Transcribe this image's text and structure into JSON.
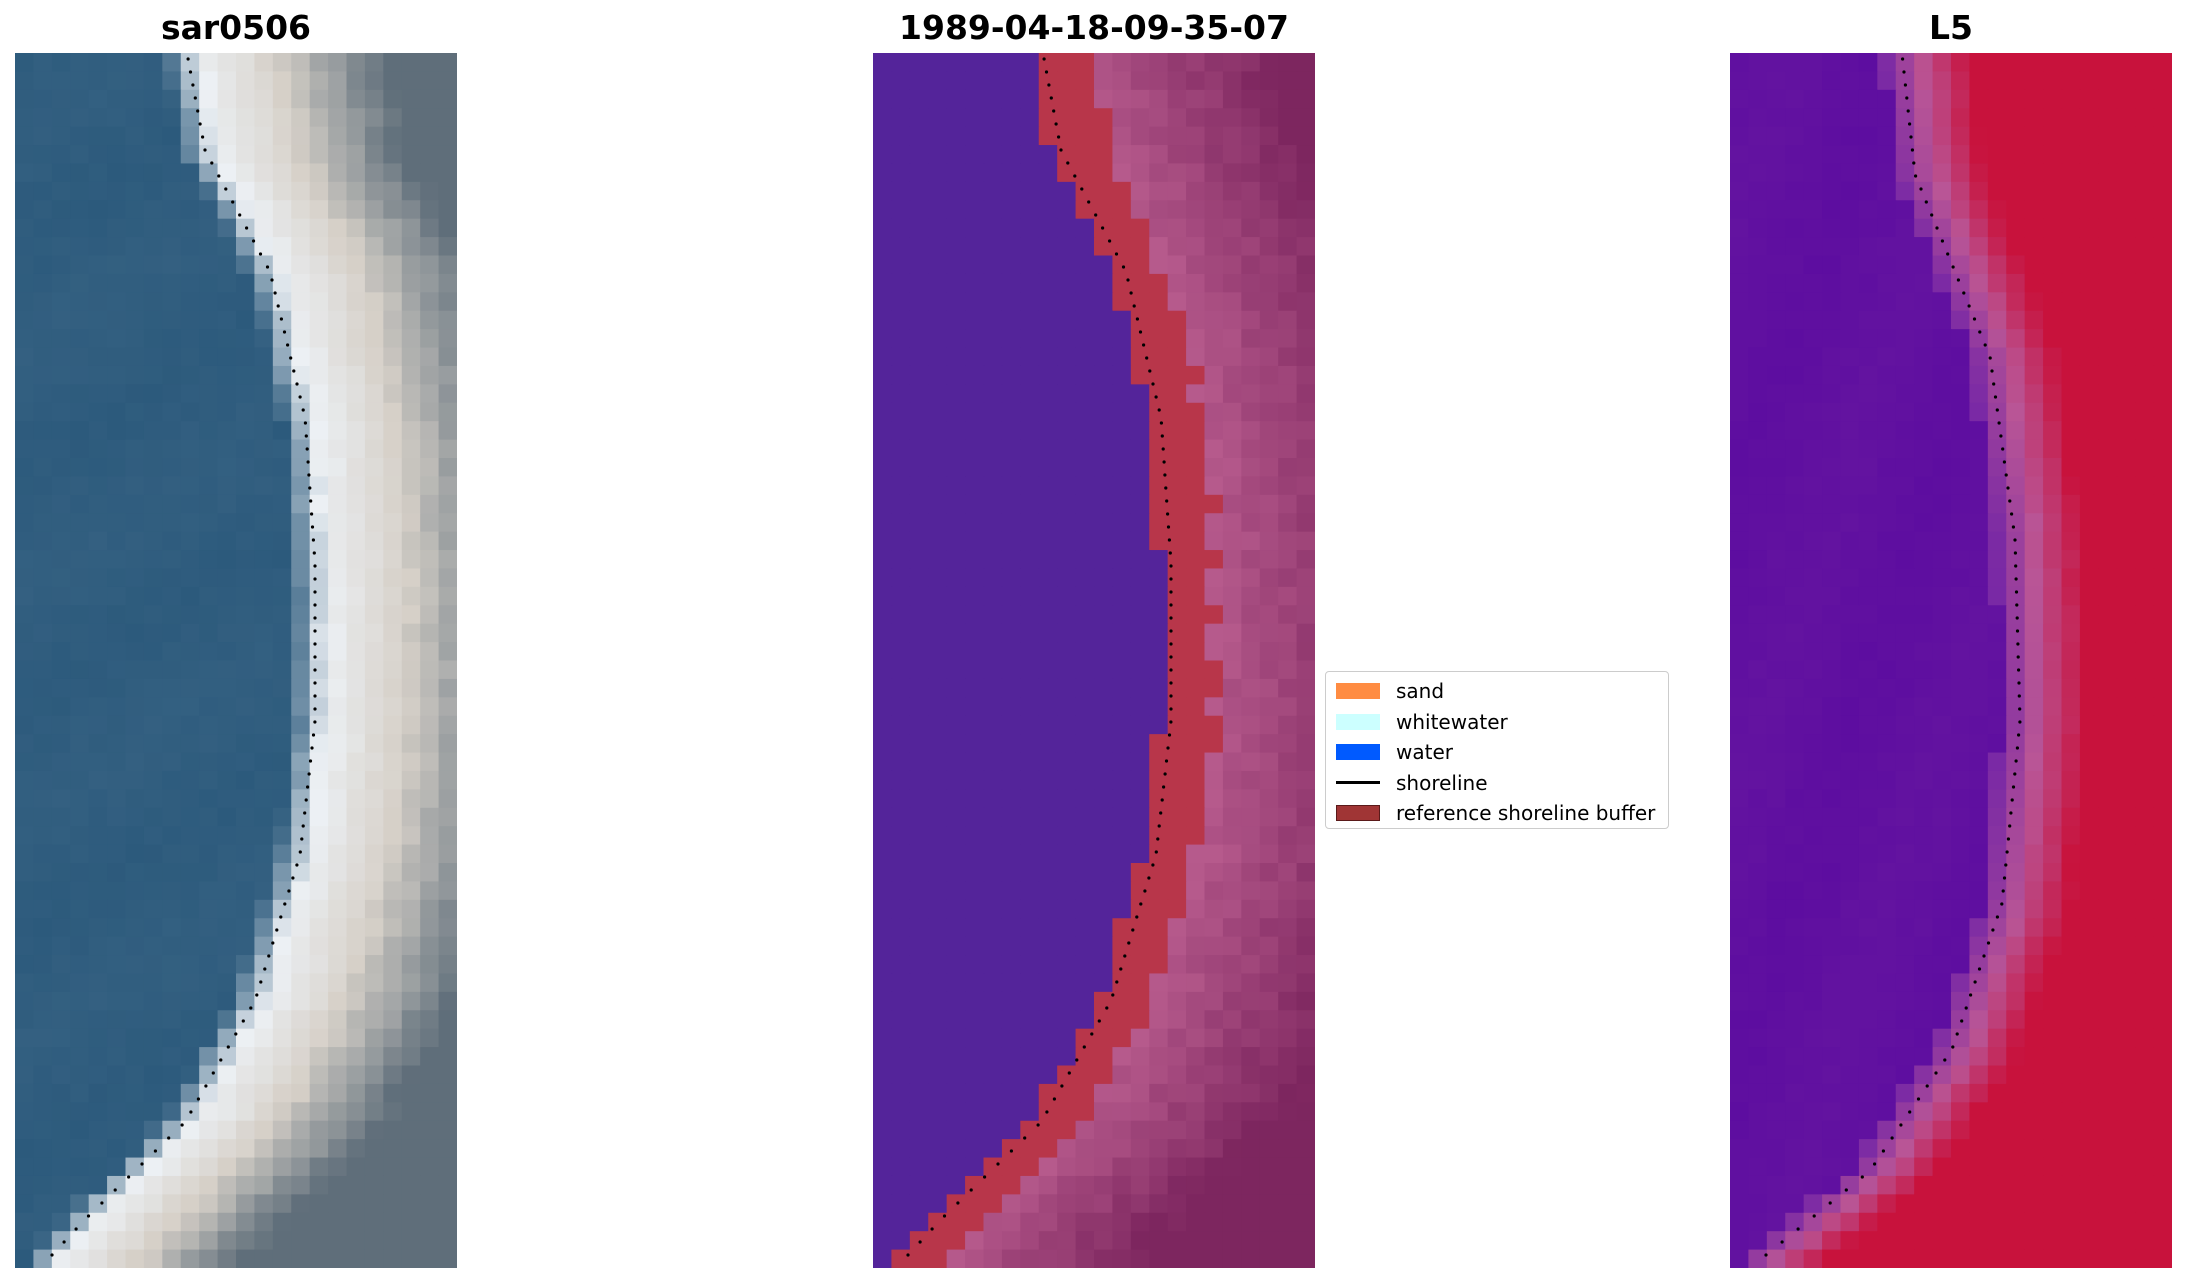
{
  "panels": [
    {
      "title": "sar0506"
    },
    {
      "title": "1989-04-18-09-35-07"
    },
    {
      "title": "L5"
    }
  ],
  "legend": {
    "items": [
      {
        "label": "sand",
        "color": "#ff8c42",
        "kind": "patch"
      },
      {
        "label": "whitewater",
        "color": "#ccffff",
        "kind": "patch"
      },
      {
        "label": "water",
        "color": "#005aff",
        "kind": "patch"
      },
      {
        "label": "shoreline",
        "color": "#000000",
        "kind": "line"
      },
      {
        "label": "reference shoreline buffer",
        "color": "#a03535",
        "kind": "patch"
      }
    ]
  },
  "colors": {
    "rgb_water": "#2c5a7c",
    "rgb_sand": "#d6d0c8",
    "class_water": "#54249a",
    "class_buffer": "#b8364a",
    "ndwi_low": "#5a0aa0",
    "ndwi_high": "#c8123c"
  }
}
